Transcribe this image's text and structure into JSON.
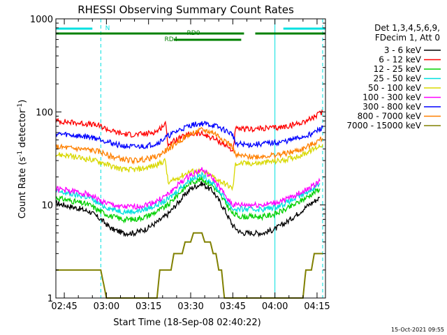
{
  "chart_data": {
    "type": "line",
    "title": "RHESSI Observing Summary Count Rates",
    "xlabel": "Start Time (18-Sep-08 02:40:22)",
    "ylabel_main": "Count Rate (s",
    "ylabel_sup1": "-1",
    "ylabel_mid": " detector",
    "ylabel_sup2": "-1",
    "ylabel_end": ")",
    "yscale": "log",
    "ylim": [
      1,
      1000
    ],
    "xlim_minutes": [
      162.0,
      258.0
    ],
    "y_ticks": [
      {
        "value": 1,
        "label": "1"
      },
      {
        "value": 10,
        "label": "10"
      },
      {
        "value": 100,
        "label": "100"
      },
      {
        "value": 1000,
        "label": "1000"
      }
    ],
    "x_ticks": [
      {
        "value": 165,
        "label": "02:45"
      },
      {
        "value": 180,
        "label": "03:00"
      },
      {
        "value": 195,
        "label": "03:15"
      },
      {
        "value": 210,
        "label": "03:30"
      },
      {
        "value": 225,
        "label": "03:45"
      },
      {
        "value": 240,
        "label": "04:00"
      },
      {
        "value": 255,
        "label": "04:15"
      }
    ],
    "legend_header": [
      "Det 1,3,4,5,6,9,",
      "FDecim 1, Att 0"
    ],
    "legend_placement": "right",
    "series": [
      {
        "name": "3 - 6 keV",
        "color": "#000000",
        "points": [
          [
            162,
            10.5
          ],
          [
            168,
            9.5
          ],
          [
            174,
            8.5
          ],
          [
            178,
            7
          ],
          [
            182,
            5.5
          ],
          [
            186,
            5
          ],
          [
            190,
            5
          ],
          [
            194,
            5.5
          ],
          [
            198,
            6.5
          ],
          [
            202,
            8
          ],
          [
            206,
            11
          ],
          [
            210,
            15
          ],
          [
            214,
            17
          ],
          [
            218,
            14
          ],
          [
            222,
            9
          ],
          [
            225,
            6
          ],
          [
            228,
            5
          ],
          [
            232,
            5
          ],
          [
            236,
            5
          ],
          [
            240,
            5.5
          ],
          [
            244,
            6.5
          ],
          [
            248,
            8
          ],
          [
            252,
            10
          ],
          [
            256,
            12
          ]
        ]
      },
      {
        "name": "6 - 12 keV",
        "color": "#ff0000",
        "points": [
          [
            162,
            80
          ],
          [
            166,
            78
          ],
          [
            170,
            76
          ],
          [
            174,
            74
          ],
          [
            178,
            70
          ],
          [
            182,
            62
          ],
          [
            186,
            58
          ],
          [
            190,
            57
          ],
          [
            194,
            58
          ],
          [
            198,
            62
          ],
          [
            201,
            75
          ],
          [
            202,
            45
          ],
          [
            206,
            52
          ],
          [
            210,
            58
          ],
          [
            214,
            58
          ],
          [
            218,
            52
          ],
          [
            222,
            45
          ],
          [
            225,
            38
          ],
          [
            226,
            65
          ],
          [
            230,
            65
          ],
          [
            234,
            66
          ],
          [
            238,
            67
          ],
          [
            242,
            68
          ],
          [
            246,
            72
          ],
          [
            250,
            78
          ],
          [
            254,
            88
          ],
          [
            257,
            100
          ]
        ]
      },
      {
        "name": "12 - 25 keV",
        "color": "#00d000",
        "points": [
          [
            162,
            12
          ],
          [
            168,
            11
          ],
          [
            174,
            10
          ],
          [
            178,
            8.5
          ],
          [
            182,
            7.5
          ],
          [
            186,
            7
          ],
          [
            190,
            7
          ],
          [
            194,
            7.5
          ],
          [
            198,
            8.5
          ],
          [
            202,
            10
          ],
          [
            206,
            13.5
          ],
          [
            210,
            17.5
          ],
          [
            214,
            19
          ],
          [
            218,
            16
          ],
          [
            222,
            11
          ],
          [
            225,
            8
          ],
          [
            228,
            7.5
          ],
          [
            232,
            7.5
          ],
          [
            236,
            7.5
          ],
          [
            240,
            8
          ],
          [
            244,
            9
          ],
          [
            248,
            10.5
          ],
          [
            252,
            12.5
          ],
          [
            256,
            15
          ]
        ]
      },
      {
        "name": "25 - 50 keV",
        "color": "#00e0e0",
        "points": [
          [
            162,
            14
          ],
          [
            168,
            13
          ],
          [
            174,
            12
          ],
          [
            178,
            10
          ],
          [
            182,
            9
          ],
          [
            186,
            8.5
          ],
          [
            190,
            8.5
          ],
          [
            194,
            9
          ],
          [
            198,
            10
          ],
          [
            202,
            11.5
          ],
          [
            206,
            15
          ],
          [
            210,
            19
          ],
          [
            214,
            21
          ],
          [
            218,
            17
          ],
          [
            222,
            12
          ],
          [
            225,
            9
          ],
          [
            228,
            9
          ],
          [
            232,
            9
          ],
          [
            236,
            9
          ],
          [
            240,
            9.5
          ],
          [
            244,
            10.5
          ],
          [
            248,
            12
          ],
          [
            252,
            14
          ],
          [
            256,
            17
          ]
        ]
      },
      {
        "name": "50 - 100 keV",
        "color": "#d8d800",
        "points": [
          [
            162,
            35
          ],
          [
            166,
            34
          ],
          [
            170,
            32
          ],
          [
            174,
            31
          ],
          [
            178,
            29
          ],
          [
            182,
            26
          ],
          [
            186,
            24
          ],
          [
            190,
            24
          ],
          [
            194,
            25
          ],
          [
            198,
            27
          ],
          [
            201,
            30
          ],
          [
            202,
            17
          ],
          [
            206,
            20
          ],
          [
            210,
            23
          ],
          [
            214,
            23
          ],
          [
            218,
            20
          ],
          [
            222,
            17
          ],
          [
            225,
            15
          ],
          [
            226,
            28
          ],
          [
            230,
            28
          ],
          [
            234,
            28
          ],
          [
            238,
            29
          ],
          [
            242,
            30
          ],
          [
            246,
            32
          ],
          [
            250,
            35
          ],
          [
            254,
            40
          ],
          [
            257,
            45
          ]
        ]
      },
      {
        "name": "100 - 300 keV",
        "color": "#ff00ff",
        "points": [
          [
            162,
            15
          ],
          [
            168,
            14
          ],
          [
            174,
            13
          ],
          [
            178,
            11
          ],
          [
            182,
            10
          ],
          [
            186,
            9.5
          ],
          [
            190,
            9.5
          ],
          [
            194,
            10
          ],
          [
            198,
            11
          ],
          [
            202,
            13
          ],
          [
            206,
            17
          ],
          [
            210,
            21
          ],
          [
            214,
            24
          ],
          [
            218,
            19
          ],
          [
            222,
            13
          ],
          [
            225,
            10
          ],
          [
            228,
            10
          ],
          [
            232,
            10
          ],
          [
            236,
            10
          ],
          [
            240,
            10.5
          ],
          [
            244,
            11.5
          ],
          [
            248,
            13
          ],
          [
            252,
            15
          ],
          [
            256,
            18
          ]
        ]
      },
      {
        "name": "300 - 800 keV",
        "color": "#0000ff",
        "points": [
          [
            162,
            58
          ],
          [
            166,
            57
          ],
          [
            170,
            55
          ],
          [
            174,
            54
          ],
          [
            178,
            51
          ],
          [
            182,
            46
          ],
          [
            186,
            43
          ],
          [
            190,
            42
          ],
          [
            194,
            43
          ],
          [
            198,
            46
          ],
          [
            202,
            55
          ],
          [
            206,
            64
          ],
          [
            210,
            72
          ],
          [
            214,
            75
          ],
          [
            218,
            72
          ],
          [
            222,
            64
          ],
          [
            225,
            57
          ],
          [
            226,
            46
          ],
          [
            230,
            44
          ],
          [
            234,
            45
          ],
          [
            238,
            46
          ],
          [
            242,
            47
          ],
          [
            246,
            50
          ],
          [
            250,
            54
          ],
          [
            254,
            60
          ],
          [
            257,
            68
          ]
        ]
      },
      {
        "name": "800 - 7000 keV",
        "color": "#ff8000",
        "points": [
          [
            162,
            42
          ],
          [
            166,
            41
          ],
          [
            170,
            40
          ],
          [
            174,
            39
          ],
          [
            178,
            37
          ],
          [
            182,
            33
          ],
          [
            186,
            31
          ],
          [
            190,
            30
          ],
          [
            194,
            31
          ],
          [
            198,
            33
          ],
          [
            202,
            40
          ],
          [
            206,
            49
          ],
          [
            210,
            58
          ],
          [
            214,
            64
          ],
          [
            218,
            60
          ],
          [
            222,
            50
          ],
          [
            225,
            42
          ],
          [
            226,
            34
          ],
          [
            230,
            33
          ],
          [
            234,
            33
          ],
          [
            238,
            34
          ],
          [
            242,
            35
          ],
          [
            246,
            37
          ],
          [
            250,
            40
          ],
          [
            254,
            46
          ],
          [
            257,
            52
          ]
        ]
      },
      {
        "name": "7000 - 15000 keV",
        "color": "#808000",
        "points": [
          [
            162,
            2
          ],
          [
            178,
            2
          ],
          [
            180,
            1
          ],
          [
            198,
            1
          ],
          [
            199,
            2
          ],
          [
            203,
            2
          ],
          [
            204,
            3
          ],
          [
            207,
            3
          ],
          [
            208,
            4
          ],
          [
            210,
            4
          ],
          [
            211,
            5
          ],
          [
            214,
            5
          ],
          [
            215,
            4
          ],
          [
            217,
            4
          ],
          [
            218,
            3
          ],
          [
            219,
            3
          ],
          [
            220,
            2
          ],
          [
            221,
            2
          ],
          [
            222,
            1
          ],
          [
            250,
            1
          ],
          [
            251,
            2
          ],
          [
            253,
            2
          ],
          [
            254,
            3
          ],
          [
            257,
            3
          ]
        ]
      }
    ],
    "state_bars": [
      {
        "label": "N",
        "color": "#00e0e0",
        "segments": [
          [
            162,
            175
          ],
          [
            243,
            258
          ]
        ]
      },
      {
        "label": "RD0",
        "color": "#008000",
        "segments": [
          [
            162,
            229
          ],
          [
            233,
            258
          ]
        ]
      },
      {
        "label": "RD4",
        "color": "#008000",
        "segments": [
          [
            204,
            228
          ]
        ]
      }
    ],
    "vertical_markers": [
      {
        "color": "#00e0e0",
        "style": "dashed",
        "x": 178
      },
      {
        "color": "#00e0e0",
        "style": "solid",
        "x": 240
      },
      {
        "color": "#00e0e0",
        "style": "dashed",
        "x": 257
      }
    ],
    "timestamp": "15-Oct-2021 09:55"
  }
}
